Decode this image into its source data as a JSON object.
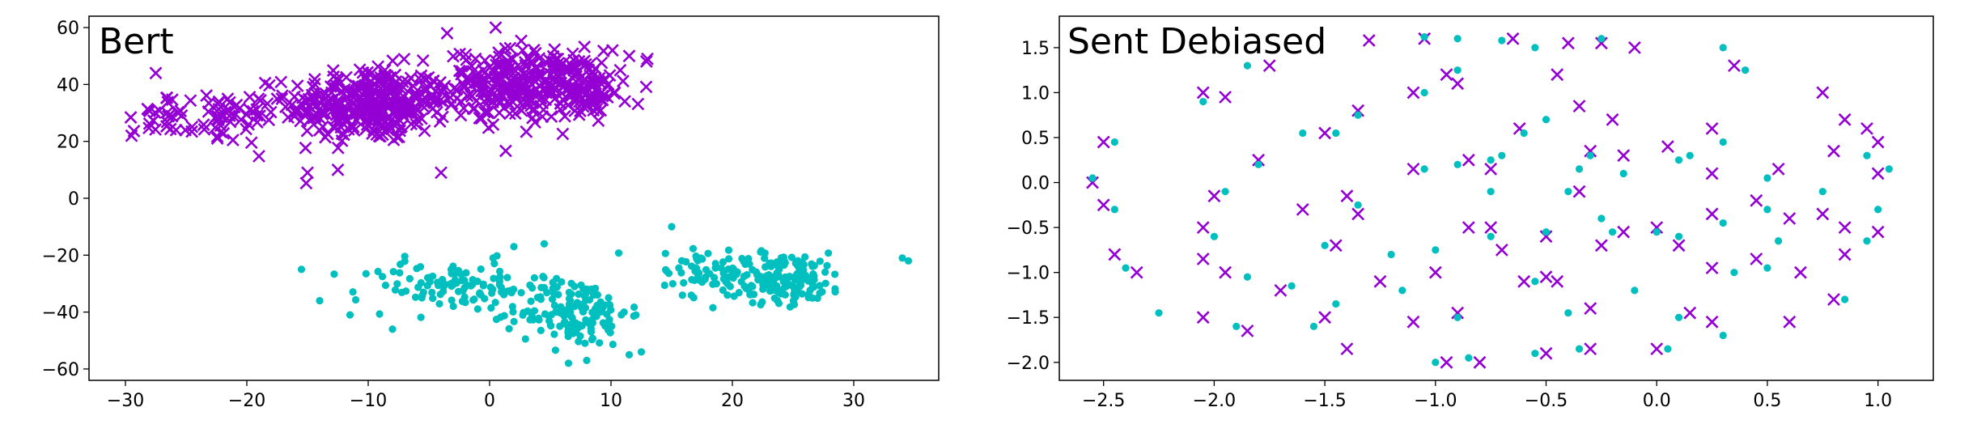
{
  "chart_data": [
    {
      "type": "scatter",
      "title": "Bert",
      "xlabel": "",
      "ylabel": "",
      "xlim": [
        -33,
        37
      ],
      "ylim": [
        -64,
        64
      ],
      "xticks": [
        -30,
        -20,
        -10,
        0,
        10,
        20,
        30
      ],
      "yticks": [
        -60,
        -40,
        -20,
        0,
        20,
        40,
        60
      ],
      "grid": false,
      "series": [
        {
          "marker": "x",
          "color": "#9400d3",
          "clusters": [
            {
              "center": [
                -10,
                33
              ],
              "spread": [
                6,
                12
              ],
              "count": 330
            },
            {
              "center": [
                3,
                40
              ],
              "spread": [
                6,
                11
              ],
              "count": 300
            },
            {
              "center": [
                -22,
                28
              ],
              "spread": [
                4,
                8
              ],
              "count": 60
            },
            {
              "center": [
                8,
                38
              ],
              "spread": [
                3,
                8
              ],
              "count": 60
            },
            {
              "center": [
                -27,
                30
              ],
              "spread": [
                2,
                6
              ],
              "count": 20
            }
          ],
          "points": [
            [
              -29.5,
              22
            ],
            [
              -27.5,
              44
            ],
            [
              11.5,
              50
            ],
            [
              -12.5,
              10
            ],
            [
              -15,
              9
            ],
            [
              -4,
              9
            ],
            [
              0.5,
              60
            ],
            [
              -3.5,
              58
            ],
            [
              13,
              49
            ]
          ]
        },
        {
          "marker": "o",
          "color": "#00bfbf",
          "clusters": [
            {
              "center": [
                -3,
                -31
              ],
              "spread": [
                7,
                8
              ],
              "count": 110
            },
            {
              "center": [
                7,
                -40
              ],
              "spread": [
                4,
                11
              ],
              "count": 150
            },
            {
              "center": [
                24,
                -28
              ],
              "spread": [
                5,
                8
              ],
              "count": 180
            },
            {
              "center": [
                17,
                -25
              ],
              "spread": [
                2.5,
                8
              ],
              "count": 40
            }
          ],
          "points": [
            [
              -15.5,
              -25
            ],
            [
              -14,
              -36
            ],
            [
              -11.5,
              -41
            ],
            [
              -8,
              -46
            ],
            [
              6.5,
              -58
            ],
            [
              8,
              -57
            ],
            [
              15,
              -10
            ],
            [
              34,
              -21
            ],
            [
              34.5,
              -22
            ],
            [
              2,
              -17
            ],
            [
              4.5,
              -16
            ],
            [
              11.5,
              -55
            ],
            [
              12.5,
              -54
            ]
          ]
        }
      ]
    },
    {
      "type": "scatter",
      "title": "Sent Debiased",
      "xlabel": "",
      "ylabel": "",
      "xlim": [
        -2.7,
        1.25
      ],
      "ylim": [
        -2.2,
        1.85
      ],
      "xticks": [
        -2.5,
        -2.0,
        -1.5,
        -1.0,
        -0.5,
        0.0,
        0.5,
        1.0
      ],
      "xtick_labels": [
        "−2.5",
        "−2.0",
        "−1.5",
        "−1.0",
        "−0.5",
        "0.0",
        "0.5",
        "1.0"
      ],
      "yticks": [
        -2.0,
        -1.5,
        -1.0,
        -0.5,
        0.0,
        0.5,
        1.0,
        1.5
      ],
      "ytick_labels": [
        "−2.0",
        "−1.5",
        "−1.0",
        "−0.5",
        "0.0",
        "0.5",
        "1.0",
        "1.5"
      ],
      "grid": false,
      "series": [
        {
          "marker": "x",
          "color": "#9400d3",
          "points": [
            [
              -1.05,
              1.6
            ],
            [
              -1.3,
              1.58
            ],
            [
              -0.4,
              1.55
            ],
            [
              -0.1,
              1.5
            ],
            [
              0.35,
              1.3
            ],
            [
              -0.65,
              1.6
            ],
            [
              -0.25,
              1.55
            ],
            [
              -2.05,
              1.0
            ],
            [
              -1.95,
              0.95
            ],
            [
              -1.75,
              1.3
            ],
            [
              -1.35,
              0.8
            ],
            [
              -1.1,
              1.0
            ],
            [
              -0.95,
              1.2
            ],
            [
              -0.45,
              1.2
            ],
            [
              -2.5,
              0.45
            ],
            [
              -1.5,
              0.55
            ],
            [
              -0.62,
              0.6
            ],
            [
              -0.35,
              0.85
            ],
            [
              -0.2,
              0.7
            ],
            [
              0.25,
              0.6
            ],
            [
              0.75,
              1.0
            ],
            [
              0.85,
              0.7
            ],
            [
              0.95,
              0.6
            ],
            [
              1.0,
              0.45
            ],
            [
              -2.55,
              0.0
            ],
            [
              -2.0,
              -0.15
            ],
            [
              -1.8,
              0.25
            ],
            [
              -1.4,
              -0.15
            ],
            [
              -1.1,
              0.15
            ],
            [
              -0.85,
              0.25
            ],
            [
              -0.75,
              0.15
            ],
            [
              -0.35,
              -0.1
            ],
            [
              -0.15,
              0.3
            ],
            [
              0.05,
              0.4
            ],
            [
              0.25,
              0.1
            ],
            [
              0.55,
              0.15
            ],
            [
              0.8,
              0.35
            ],
            [
              1.0,
              0.1
            ],
            [
              -2.5,
              -0.25
            ],
            [
              -2.05,
              -0.5
            ],
            [
              -1.6,
              -0.3
            ],
            [
              -1.35,
              -0.35
            ],
            [
              -0.85,
              -0.5
            ],
            [
              -0.75,
              -0.5
            ],
            [
              -0.5,
              -0.6
            ],
            [
              -0.15,
              -0.55
            ],
            [
              0.0,
              -0.5
            ],
            [
              0.25,
              -0.35
            ],
            [
              0.45,
              -0.2
            ],
            [
              0.6,
              -0.4
            ],
            [
              0.85,
              -0.5
            ],
            [
              1.0,
              -0.55
            ],
            [
              -2.45,
              -0.8
            ],
            [
              -2.05,
              -0.85
            ],
            [
              -1.95,
              -1.0
            ],
            [
              -1.7,
              -1.2
            ],
            [
              -1.45,
              -0.7
            ],
            [
              -1.25,
              -1.1
            ],
            [
              -1.0,
              -1.0
            ],
            [
              -0.7,
              -0.75
            ],
            [
              -0.45,
              -1.1
            ],
            [
              -0.25,
              -0.7
            ],
            [
              0.1,
              -0.7
            ],
            [
              0.25,
              -0.95
            ],
            [
              0.45,
              -0.85
            ],
            [
              0.65,
              -1.0
            ],
            [
              0.85,
              -0.8
            ],
            [
              -2.35,
              -1.0
            ],
            [
              -2.05,
              -1.5
            ],
            [
              -1.85,
              -1.65
            ],
            [
              -1.5,
              -1.5
            ],
            [
              -1.4,
              -1.85
            ],
            [
              -1.1,
              -1.55
            ],
            [
              -0.9,
              -1.45
            ],
            [
              -0.5,
              -1.05
            ],
            [
              -0.3,
              -1.4
            ],
            [
              0.0,
              -1.85
            ],
            [
              0.25,
              -1.55
            ],
            [
              0.6,
              -1.55
            ],
            [
              0.8,
              -1.3
            ],
            [
              -0.95,
              -2.0
            ],
            [
              -0.8,
              -2.0
            ],
            [
              -0.5,
              -1.9
            ],
            [
              -0.3,
              -1.85
            ],
            [
              -0.6,
              -1.1
            ],
            [
              0.15,
              -1.45
            ],
            [
              0.75,
              -0.35
            ],
            [
              -0.9,
              1.1
            ],
            [
              -0.3,
              0.35
            ]
          ]
        },
        {
          "marker": "o",
          "color": "#00bfbf",
          "points": [
            [
              -1.05,
              1.62
            ],
            [
              -0.9,
              1.6
            ],
            [
              -0.7,
              1.58
            ],
            [
              -0.55,
              1.5
            ],
            [
              -0.25,
              1.6
            ],
            [
              0.3,
              1.5
            ],
            [
              -1.85,
              1.3
            ],
            [
              -2.05,
              0.9
            ],
            [
              -1.35,
              0.75
            ],
            [
              -1.05,
              1.0
            ],
            [
              -0.9,
              1.25
            ],
            [
              0.4,
              1.25
            ],
            [
              -2.45,
              0.45
            ],
            [
              -1.6,
              0.55
            ],
            [
              -1.45,
              0.55
            ],
            [
              -0.6,
              0.55
            ],
            [
              -0.5,
              0.7
            ],
            [
              -0.3,
              0.3
            ],
            [
              0.1,
              0.25
            ],
            [
              0.3,
              0.45
            ],
            [
              0.95,
              0.3
            ],
            [
              -1.05,
              0.15
            ],
            [
              -0.9,
              0.2
            ],
            [
              -0.75,
              0.25
            ],
            [
              -0.35,
              0.15
            ],
            [
              -0.15,
              0.1
            ],
            [
              0.5,
              0.05
            ],
            [
              1.05,
              0.15
            ],
            [
              -2.55,
              0.05
            ],
            [
              -1.95,
              -0.1
            ],
            [
              -1.8,
              0.2
            ],
            [
              -1.35,
              -0.25
            ],
            [
              -0.75,
              -0.1
            ],
            [
              -0.25,
              -0.4
            ],
            [
              0.1,
              -0.6
            ],
            [
              0.5,
              -0.3
            ],
            [
              0.75,
              -0.1
            ],
            [
              1.0,
              -0.3
            ],
            [
              -2.45,
              -0.3
            ],
            [
              -2.0,
              -0.6
            ],
            [
              -1.5,
              -0.7
            ],
            [
              -1.2,
              -0.8
            ],
            [
              -1.0,
              -0.75
            ],
            [
              -0.75,
              -0.6
            ],
            [
              -0.5,
              -0.55
            ],
            [
              -0.2,
              -0.55
            ],
            [
              0.0,
              -0.55
            ],
            [
              0.3,
              -0.45
            ],
            [
              0.55,
              -0.65
            ],
            [
              0.95,
              -0.65
            ],
            [
              -2.4,
              -0.95
            ],
            [
              -2.25,
              -1.45
            ],
            [
              -1.9,
              -1.6
            ],
            [
              -1.55,
              -1.6
            ],
            [
              -1.45,
              -1.35
            ],
            [
              -1.15,
              -1.2
            ],
            [
              -0.9,
              -1.5
            ],
            [
              -0.55,
              -1.1
            ],
            [
              -0.4,
              -1.45
            ],
            [
              -0.1,
              -1.2
            ],
            [
              0.1,
              -1.5
            ],
            [
              0.3,
              -1.7
            ],
            [
              0.5,
              -0.95
            ],
            [
              0.85,
              -1.3
            ],
            [
              -1.0,
              -2.0
            ],
            [
              -0.85,
              -1.95
            ],
            [
              -0.55,
              -1.9
            ],
            [
              -0.35,
              -1.85
            ],
            [
              0.05,
              -1.85
            ],
            [
              -1.65,
              -1.15
            ],
            [
              -1.85,
              -1.05
            ],
            [
              -0.4,
              -0.1
            ],
            [
              0.15,
              0.3
            ],
            [
              0.35,
              -1.0
            ],
            [
              -0.7,
              0.3
            ]
          ]
        }
      ]
    }
  ]
}
